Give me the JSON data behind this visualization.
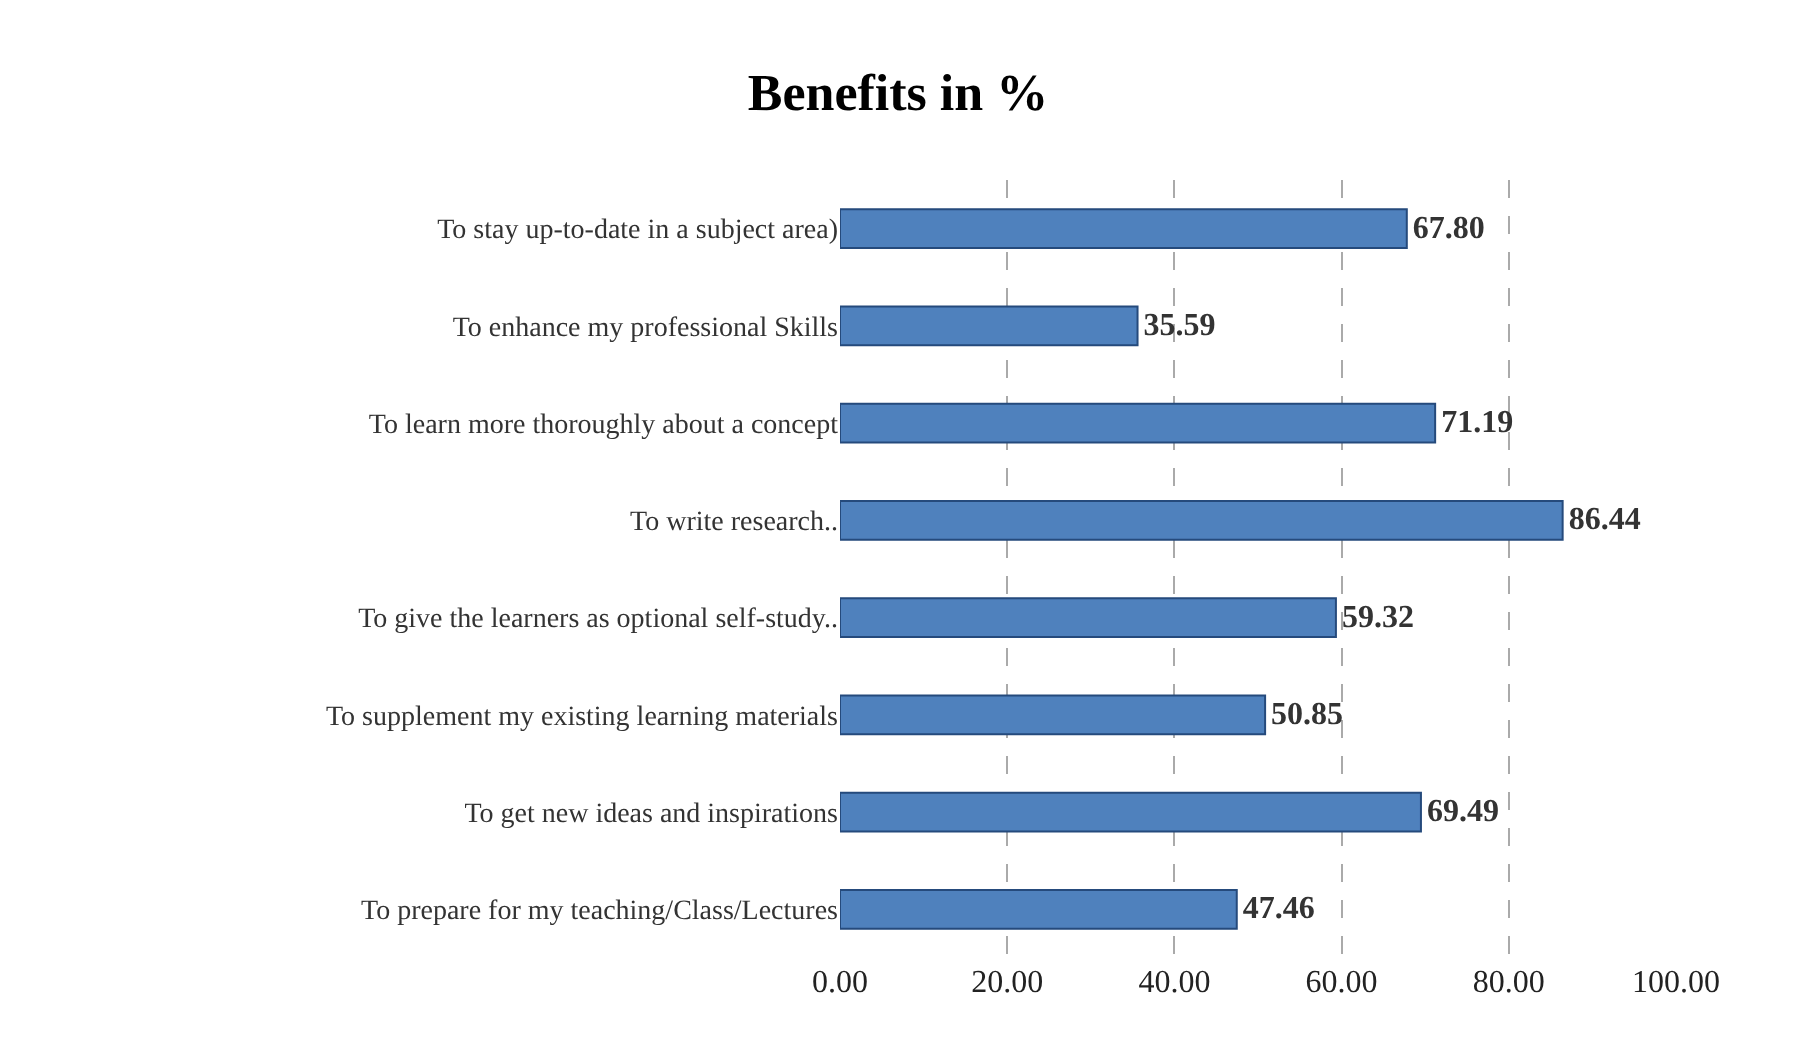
{
  "chart_data": {
    "type": "bar",
    "orientation": "horizontal",
    "title": "Benefits in %",
    "categories": [
      "To stay up-to-date in a subject area)",
      "To enhance my professional Skills",
      "To learn more thoroughly about a concept",
      "To write research..",
      "To give the learners as optional self-study..",
      "To supplement my existing learning materials",
      "To get new ideas and inspirations",
      "To prepare for my teaching/Class/Lectures"
    ],
    "values": [
      67.8,
      35.59,
      71.19,
      86.44,
      59.32,
      50.85,
      69.49,
      47.46
    ],
    "value_labels": [
      "67.80",
      "35.59",
      "71.19",
      "86.44",
      "59.32",
      "50.85",
      "69.49",
      "47.46"
    ],
    "color": "#4f81bd",
    "xlim": [
      0,
      100
    ],
    "xticks": [
      {
        "value": 0,
        "label": "0.00"
      },
      {
        "value": 20,
        "label": "20.00"
      },
      {
        "value": 40,
        "label": "40.00"
      },
      {
        "value": 60,
        "label": "60.00"
      },
      {
        "value": 80,
        "label": "80.00"
      },
      {
        "value": 100,
        "label": "100.00"
      }
    ],
    "grid": "x"
  }
}
